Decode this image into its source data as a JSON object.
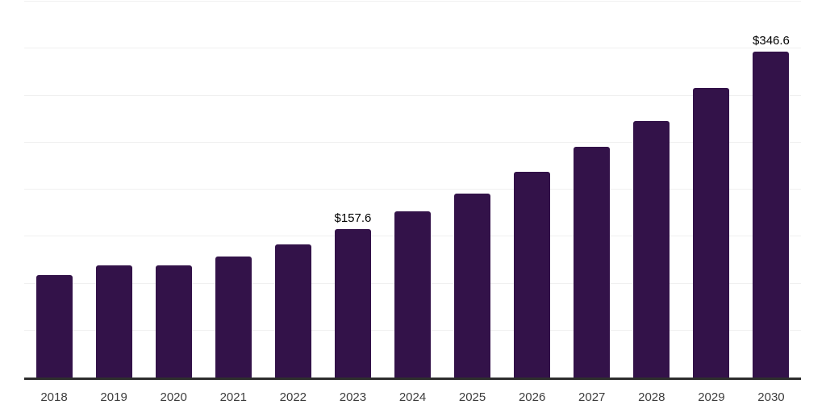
{
  "chart_data": {
    "type": "bar",
    "title": "",
    "xlabel": "",
    "ylabel": "",
    "categories": [
      "2018",
      "2019",
      "2020",
      "2021",
      "2022",
      "2023",
      "2024",
      "2025",
      "2026",
      "2027",
      "2028",
      "2029",
      "2030"
    ],
    "values": [
      108.9,
      119.2,
      119.5,
      128.4,
      142.0,
      157.6,
      176.5,
      195.5,
      219.0,
      245.3,
      273.3,
      308.3,
      346.6
    ],
    "data_labels": {
      "2023": "$157.6",
      "2030": "$346.6"
    },
    "ylim": [
      0,
      400
    ],
    "gridline_step": 50,
    "grid": "horizontal",
    "legend": "none",
    "y_axis_tick_labels_visible": false
  },
  "colors": {
    "bar": "#331249",
    "axis_line": "#2e2e2e",
    "gridline": "#f0f0f0",
    "tick_label": "#3d3d3d",
    "annotation": "#000000",
    "background": "#ffffff"
  }
}
